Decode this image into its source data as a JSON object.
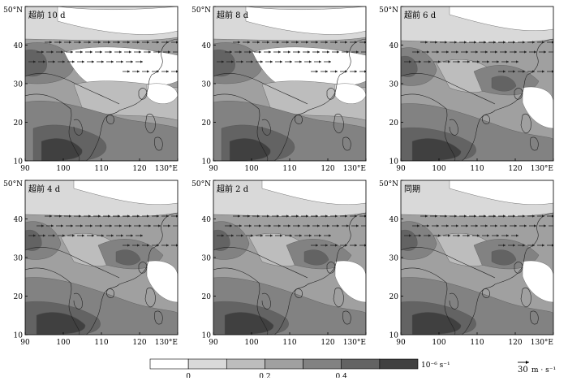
{
  "figure": {
    "panels": [
      {
        "title": "超前 10 d"
      },
      {
        "title": "超前 8 d"
      },
      {
        "title": "超前 6 d"
      },
      {
        "title": "超前 4 d"
      },
      {
        "title": "超前 2 d"
      },
      {
        "title": "同期"
      }
    ],
    "lat_ticks": [
      "10",
      "20",
      "30",
      "40",
      "50°N"
    ],
    "lon_ticks": [
      "90",
      "100",
      "110",
      "120",
      "130°E"
    ],
    "colorbar": {
      "unit": "10⁻⁶ s⁻¹",
      "labels": [
        "0",
        "0.2",
        "0.4"
      ],
      "colors": [
        "#ffffff",
        "#d9d9d9",
        "#bdbdbd",
        "#a0a0a0",
        "#828282",
        "#636363",
        "#404040"
      ]
    },
    "reference_vector": {
      "value": "30",
      "unit": "m · s⁻¹"
    },
    "map_extent": {
      "lon": [
        90,
        130
      ],
      "lat": [
        10,
        50
      ]
    }
  }
}
